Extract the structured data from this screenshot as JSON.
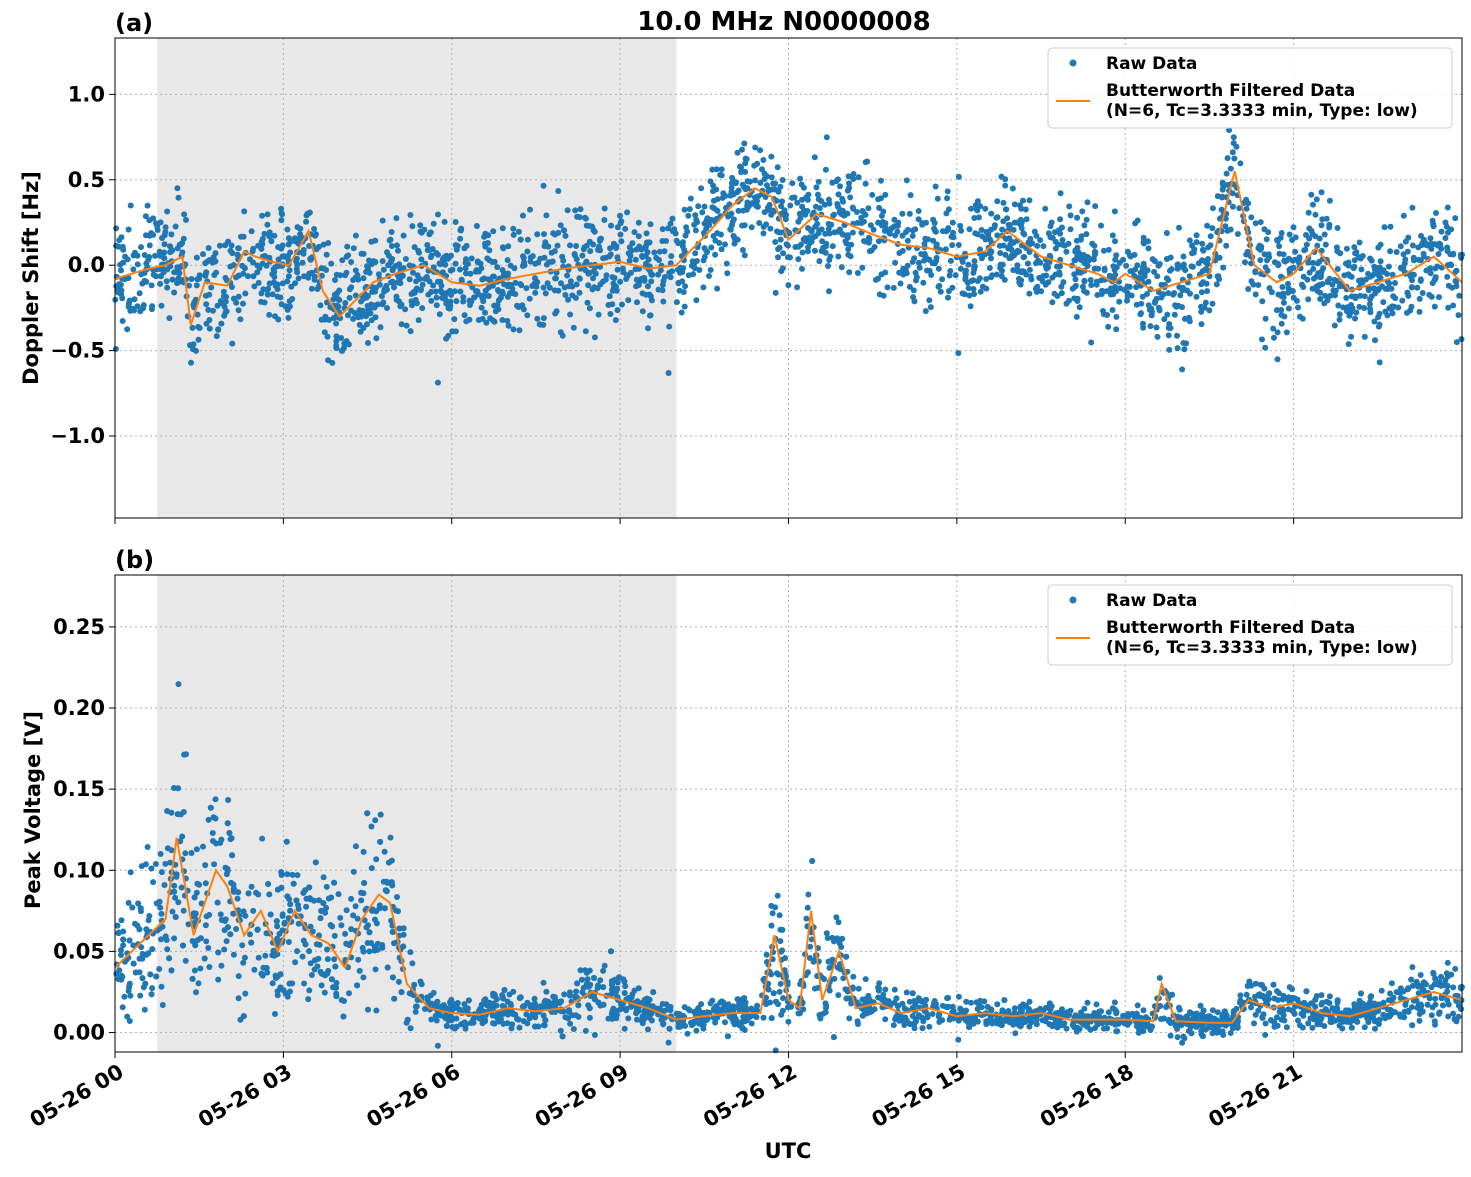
{
  "chart_data": [
    {
      "type": "scatter",
      "panel_label": "(a)",
      "title": "10.0 MHz N0000008",
      "xlabel": "",
      "ylabel": "Doppler Shift [Hz]",
      "xlim": [
        0,
        24
      ],
      "ylim": [
        -1.48,
        1.33
      ],
      "yticks": [
        1.0,
        0.5,
        0.0,
        -0.5,
        -1.0
      ],
      "ytick_labels": [
        "1.0",
        "0.5",
        "0.0",
        "−0.5",
        "−1.0"
      ],
      "grid": true,
      "legend_position": "top-right",
      "shaded_interval_hours": [
        0.75,
        10.0
      ],
      "series": [
        {
          "name": "Raw Data",
          "kind": "scatter",
          "color": "#1f77b4",
          "x": [
            0,
            0.3,
            0.6,
            0.9,
            1.2,
            1.35,
            1.6,
            2.0,
            2.3,
            2.5,
            2.8,
            3.1,
            3.45,
            3.7,
            4.0,
            4.3,
            4.6,
            5.0,
            5.5,
            6.0,
            6.5,
            7.0,
            7.5,
            8.0,
            8.5,
            9.0,
            9.5,
            10.0,
            10.3,
            10.6,
            11.0,
            11.4,
            11.7,
            12.0,
            12.5,
            13.0,
            13.5,
            14.0,
            14.5,
            15.0,
            15.5,
            15.9,
            16.5,
            17.0,
            17.5,
            17.8,
            18.0,
            18.5,
            19.0,
            19.5,
            19.95,
            20.3,
            20.7,
            21.0,
            21.4,
            22.0,
            22.5,
            23.0,
            23.5,
            24.0
          ],
          "y": [
            -0.08,
            -0.05,
            -0.02,
            0.0,
            0.05,
            -0.35,
            -0.1,
            -0.12,
            0.08,
            0.05,
            0.02,
            0.0,
            0.2,
            -0.15,
            -0.3,
            -0.2,
            -0.1,
            -0.05,
            0.0,
            -0.1,
            -0.12,
            -0.08,
            -0.05,
            -0.02,
            0.0,
            0.02,
            -0.02,
            0.0,
            0.1,
            0.2,
            0.35,
            0.45,
            0.4,
            0.15,
            0.3,
            0.25,
            0.18,
            0.12,
            0.1,
            0.05,
            0.08,
            0.2,
            0.05,
            0.0,
            -0.05,
            -0.1,
            -0.05,
            -0.15,
            -0.1,
            -0.05,
            0.55,
            0.0,
            -0.1,
            -0.05,
            0.1,
            -0.15,
            -0.1,
            -0.05,
            0.05,
            -0.1
          ],
          "y_spread": 0.28
        },
        {
          "name": "Butterworth Filtered Data\n(N=6, Tc=3.3333 min, Type: low)",
          "kind": "line",
          "color": "#ff7f0e",
          "x": [
            0,
            0.3,
            0.6,
            0.9,
            1.2,
            1.35,
            1.6,
            2.0,
            2.3,
            2.5,
            2.8,
            3.1,
            3.45,
            3.7,
            4.0,
            4.3,
            4.6,
            5.0,
            5.5,
            6.0,
            6.5,
            7.0,
            7.5,
            8.0,
            8.5,
            9.0,
            9.5,
            10.0,
            10.3,
            10.6,
            11.0,
            11.4,
            11.7,
            12.0,
            12.5,
            13.0,
            13.5,
            14.0,
            14.5,
            15.0,
            15.5,
            15.9,
            16.5,
            17.0,
            17.5,
            17.8,
            18.0,
            18.5,
            19.0,
            19.5,
            19.95,
            20.3,
            20.7,
            21.0,
            21.4,
            22.0,
            22.5,
            23.0,
            23.5,
            24.0
          ],
          "y": [
            -0.08,
            -0.05,
            -0.02,
            0.0,
            0.05,
            -0.35,
            -0.1,
            -0.12,
            0.08,
            0.05,
            0.02,
            0.0,
            0.2,
            -0.15,
            -0.3,
            -0.2,
            -0.1,
            -0.05,
            0.0,
            -0.1,
            -0.12,
            -0.08,
            -0.05,
            -0.02,
            0.0,
            0.02,
            -0.02,
            0.0,
            0.1,
            0.2,
            0.35,
            0.45,
            0.4,
            0.15,
            0.3,
            0.25,
            0.18,
            0.12,
            0.1,
            0.05,
            0.08,
            0.2,
            0.05,
            0.0,
            -0.05,
            -0.1,
            -0.05,
            -0.15,
            -0.1,
            -0.05,
            0.55,
            0.0,
            -0.1,
            -0.05,
            0.1,
            -0.15,
            -0.1,
            -0.05,
            0.05,
            -0.1
          ]
        }
      ]
    },
    {
      "type": "scatter",
      "panel_label": "(b)",
      "xlabel": "UTC",
      "ylabel": "Peak Voltage [V]",
      "xlim": [
        0,
        24
      ],
      "ylim": [
        -0.012,
        0.282
      ],
      "yticks": [
        0.25,
        0.2,
        0.15,
        0.1,
        0.05,
        0.0
      ],
      "ytick_labels": [
        "0.25",
        "0.20",
        "0.15",
        "0.10",
        "0.05",
        "0.00"
      ],
      "xticks": [
        0,
        3,
        6,
        9,
        12,
        15,
        18,
        21
      ],
      "xtick_labels": [
        "05-26 00",
        "05-26 03",
        "05-26 06",
        "05-26 09",
        "05-26 12",
        "05-26 15",
        "05-26 18",
        "05-26 21"
      ],
      "grid": true,
      "legend_position": "top-right",
      "shaded_interval_hours": [
        0.75,
        10.0
      ],
      "series": [
        {
          "name": "Raw Data",
          "kind": "scatter",
          "color": "#1f77b4",
          "x": [
            0,
            0.3,
            0.6,
            0.9,
            1.1,
            1.4,
            1.8,
            2.0,
            2.3,
            2.6,
            2.9,
            3.2,
            3.5,
            3.8,
            4.1,
            4.4,
            4.7,
            4.9,
            5.2,
            5.6,
            6.0,
            6.5,
            7.0,
            7.5,
            8.0,
            8.5,
            9.0,
            9.5,
            10.0,
            10.5,
            11.0,
            11.5,
            11.75,
            12.0,
            12.2,
            12.4,
            12.6,
            12.9,
            13.2,
            13.6,
            14.0,
            14.5,
            15.0,
            15.5,
            16.0,
            16.5,
            17.0,
            17.5,
            18.0,
            18.5,
            18.65,
            18.9,
            19.5,
            19.9,
            20.2,
            20.6,
            21.0,
            21.5,
            22.0,
            22.5,
            23.0,
            23.5,
            24.0
          ],
          "y": [
            0.04,
            0.05,
            0.06,
            0.07,
            0.12,
            0.06,
            0.1,
            0.09,
            0.06,
            0.075,
            0.05,
            0.075,
            0.06,
            0.055,
            0.04,
            0.07,
            0.085,
            0.08,
            0.03,
            0.015,
            0.012,
            0.011,
            0.015,
            0.013,
            0.015,
            0.025,
            0.02,
            0.015,
            0.008,
            0.01,
            0.012,
            0.012,
            0.06,
            0.02,
            0.015,
            0.075,
            0.02,
            0.05,
            0.015,
            0.018,
            0.012,
            0.015,
            0.01,
            0.012,
            0.01,
            0.012,
            0.008,
            0.008,
            0.008,
            0.007,
            0.03,
            0.007,
            0.006,
            0.006,
            0.02,
            0.015,
            0.018,
            0.012,
            0.01,
            0.015,
            0.02,
            0.025,
            0.02
          ],
          "y_spread": 0.018
        },
        {
          "name": "Butterworth Filtered Data\n(N=6, Tc=3.3333 min, Type: low)",
          "kind": "line",
          "color": "#ff7f0e",
          "x": [
            0,
            0.3,
            0.6,
            0.9,
            1.1,
            1.4,
            1.8,
            2.0,
            2.3,
            2.6,
            2.9,
            3.2,
            3.5,
            3.8,
            4.1,
            4.4,
            4.7,
            4.9,
            5.2,
            5.6,
            6.0,
            6.5,
            7.0,
            7.5,
            8.0,
            8.5,
            9.0,
            9.5,
            10.0,
            10.5,
            11.0,
            11.5,
            11.75,
            12.0,
            12.2,
            12.4,
            12.6,
            12.9,
            13.2,
            13.6,
            14.0,
            14.5,
            15.0,
            15.5,
            16.0,
            16.5,
            17.0,
            17.5,
            18.0,
            18.5,
            18.65,
            18.9,
            19.5,
            19.9,
            20.2,
            20.6,
            21.0,
            21.5,
            22.0,
            22.5,
            23.0,
            23.5,
            24.0
          ],
          "y": [
            0.04,
            0.05,
            0.06,
            0.07,
            0.12,
            0.06,
            0.1,
            0.09,
            0.06,
            0.075,
            0.05,
            0.075,
            0.06,
            0.055,
            0.04,
            0.07,
            0.085,
            0.08,
            0.03,
            0.015,
            0.012,
            0.011,
            0.015,
            0.013,
            0.015,
            0.025,
            0.02,
            0.015,
            0.008,
            0.01,
            0.012,
            0.012,
            0.06,
            0.02,
            0.015,
            0.075,
            0.02,
            0.05,
            0.015,
            0.018,
            0.012,
            0.015,
            0.01,
            0.012,
            0.01,
            0.012,
            0.008,
            0.008,
            0.008,
            0.007,
            0.03,
            0.007,
            0.006,
            0.006,
            0.02,
            0.015,
            0.018,
            0.012,
            0.01,
            0.015,
            0.02,
            0.025,
            0.02
          ]
        }
      ]
    }
  ]
}
